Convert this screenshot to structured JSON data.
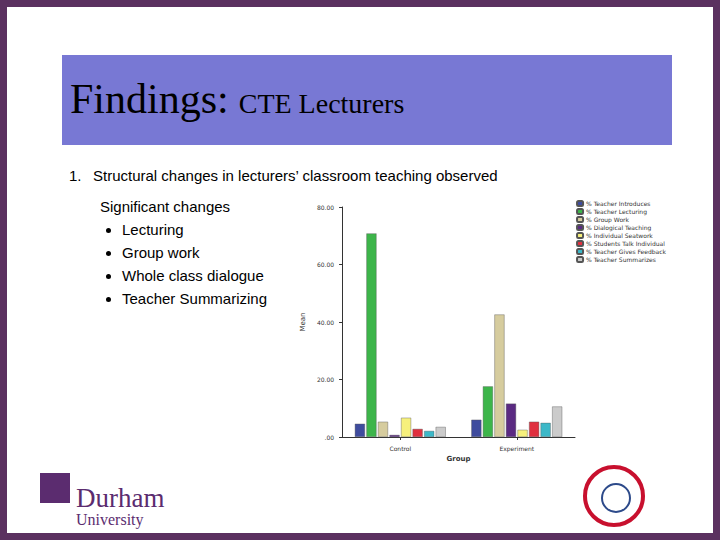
{
  "slide": {
    "title": "Findings:",
    "subtitle": "CTE Lecturers",
    "heading": {
      "number": "1.",
      "text": "Structural changes in lecturers’ classroom teaching observed"
    },
    "list_title": "Significant changes",
    "bullets": [
      "Lecturing",
      "Group work",
      "Whole class dialogue",
      "Teacher Summarizing"
    ],
    "logo": [
      "Durham",
      "University"
    ]
  },
  "chart_data": {
    "type": "bar",
    "xlabel": "Group",
    "ylabel": "Mean",
    "categories": [
      "Control",
      "Experiment"
    ],
    "series": [
      {
        "name": "% Teacher Introduces",
        "color": "#3f4c9e",
        "values": [
          4.6,
          6.0
        ]
      },
      {
        "name": "% Teacher Lecturing",
        "color": "#3db54a",
        "values": [
          70.8,
          17.6
        ]
      },
      {
        "name": "% Group Work",
        "color": "#d6cc9e",
        "values": [
          5.3,
          42.6
        ]
      },
      {
        "name": "% Dialogical Teaching",
        "color": "#5a2a82",
        "values": [
          0.7,
          11.6
        ]
      },
      {
        "name": "% Individual Seatwork",
        "color": "#f6f07c",
        "values": [
          6.7,
          2.5
        ]
      },
      {
        "name": "% Students Talk Individual",
        "color": "#e0303f",
        "values": [
          2.8,
          5.3
        ]
      },
      {
        "name": "% Teacher Gives Feedback",
        "color": "#3cb8c8",
        "values": [
          2.1,
          4.9
        ]
      },
      {
        "name": "% Teacher Summarizes",
        "color": "#cbcbcb",
        "values": [
          3.5,
          10.6
        ]
      }
    ],
    "ylim": [
      0,
      80
    ],
    "yticks": [
      {
        "value": 0,
        "label": ".00"
      },
      {
        "value": 20,
        "label": "20.00"
      },
      {
        "value": 40,
        "label": "40.00"
      },
      {
        "value": 60,
        "label": "60.00"
      },
      {
        "value": 80,
        "label": "80.00"
      }
    ],
    "grid": false,
    "legend": "upper right",
    "data_labels": false
  }
}
